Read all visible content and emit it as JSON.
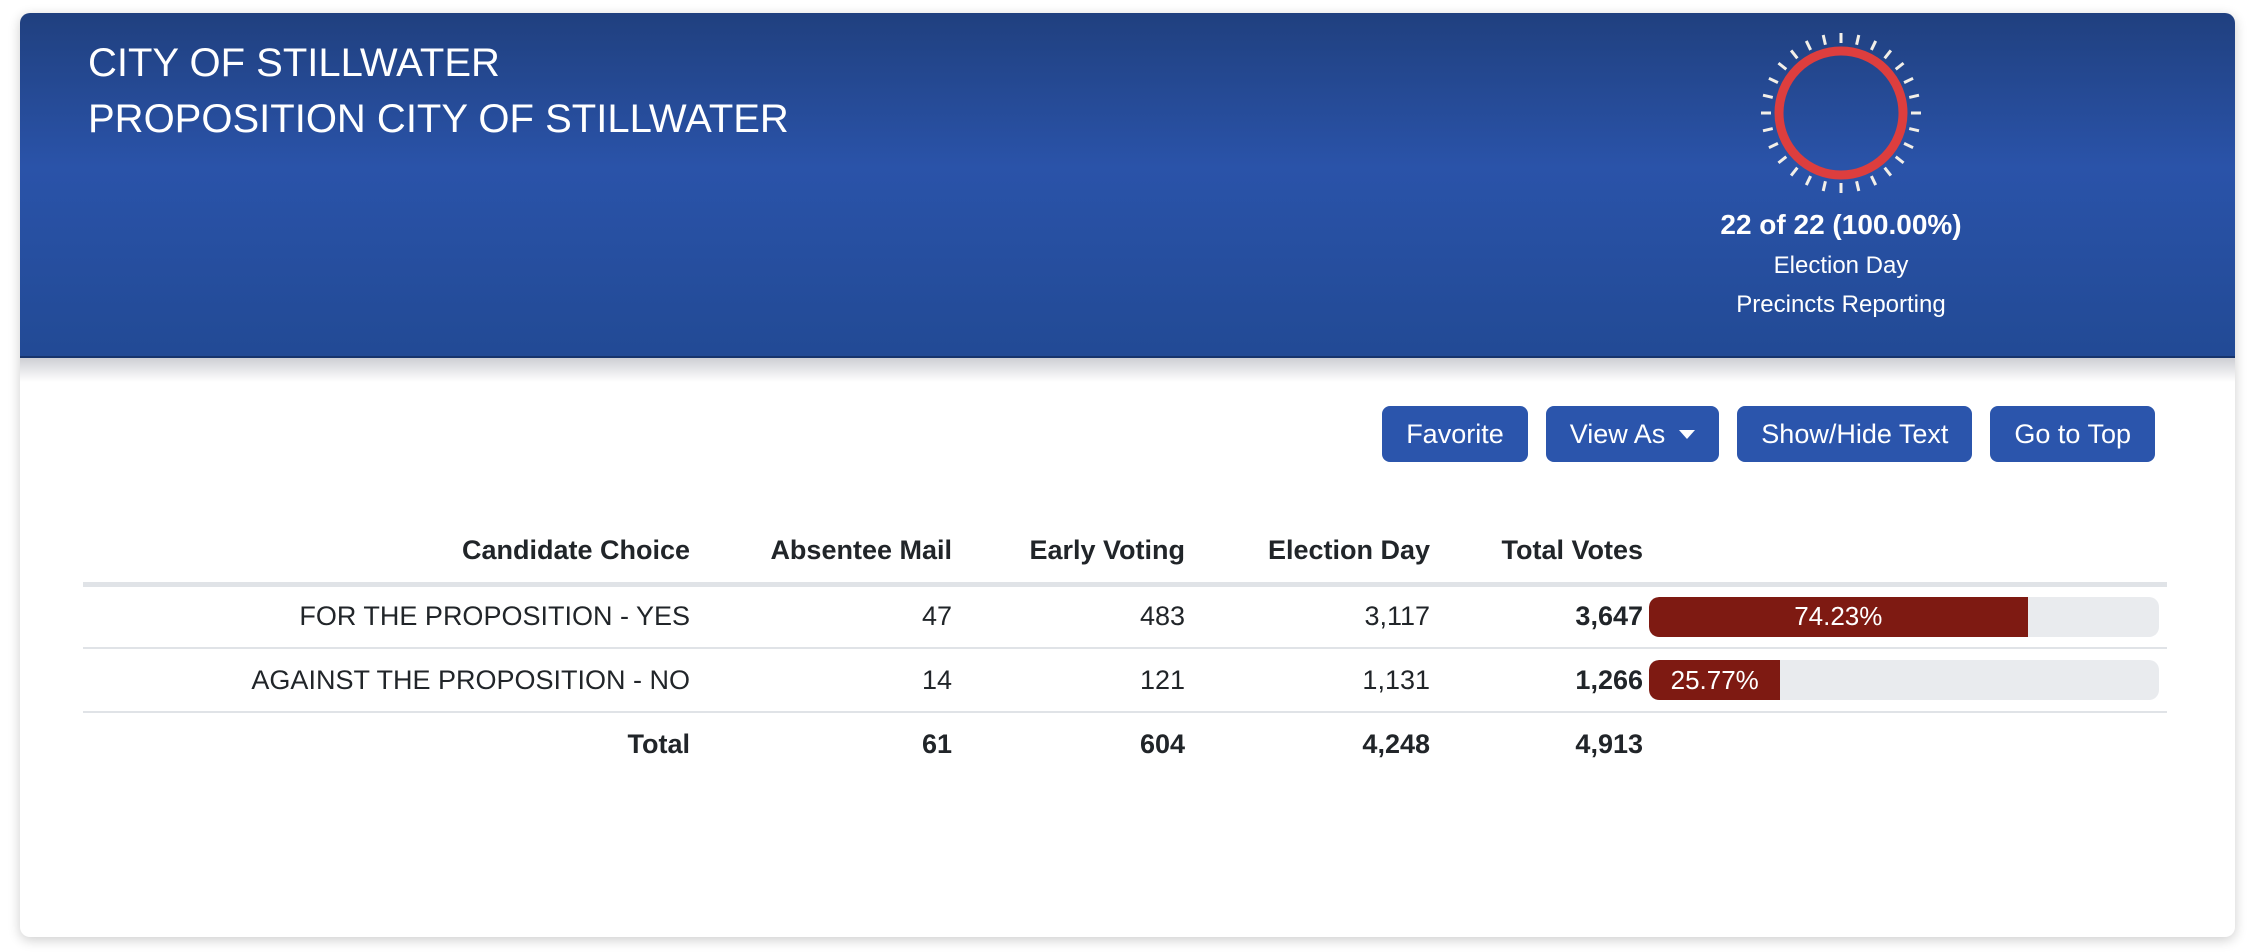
{
  "colors": {
    "header_top": "#20407f",
    "header_mid": "#2a53a9",
    "header_bottom": "#224a95",
    "accent_blue": "#2b55ac",
    "ring_red": "#dd3e3e",
    "tick_white": "#f2efe8",
    "bar_fill": "#7e1a12",
    "bar_track": "#e9ebee",
    "table_border": "#e0e3e7",
    "text_dark": "#212529"
  },
  "header": {
    "title_line1": "CITY OF STILLWATER",
    "title_line2": "PROPOSITION CITY OF STILLWATER",
    "precincts": {
      "summary": "22 of 22 (100.00%)",
      "line1": "Election Day",
      "line2": "Precincts Reporting",
      "percent_complete": 100
    }
  },
  "toolbar": {
    "favorite": "Favorite",
    "view_as": "View As",
    "show_hide": "Show/Hide Text",
    "go_to_top": "Go to Top"
  },
  "results_table": {
    "columns": {
      "choice": "Candidate Choice",
      "absentee": "Absentee Mail",
      "early": "Early Voting",
      "election": "Election Day",
      "total": "Total Votes"
    },
    "rows": [
      {
        "choice": "FOR THE PROPOSITION - YES",
        "absentee": "47",
        "early": "483",
        "election": "3,117",
        "total": "3,647",
        "percent_label": "74.23%",
        "percent": 74.23
      },
      {
        "choice": "AGAINST THE PROPOSITION - NO",
        "absentee": "14",
        "early": "121",
        "election": "1,131",
        "total": "1,266",
        "percent_label": "25.77%",
        "percent": 25.77
      }
    ],
    "total_row": {
      "label": "Total",
      "absentee": "61",
      "early": "604",
      "election": "4,248",
      "total": "4,913"
    }
  }
}
